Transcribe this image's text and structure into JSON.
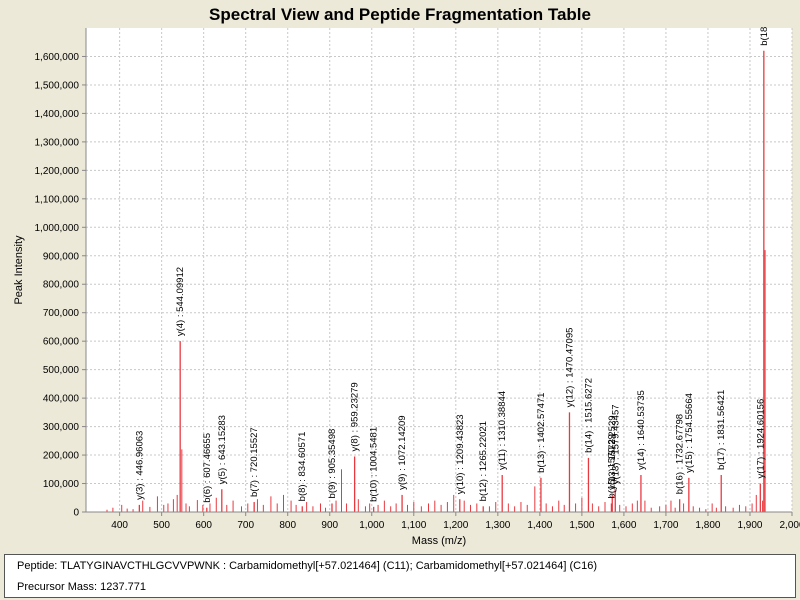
{
  "chart_data": {
    "type": "bar",
    "title": "Spectral View and Peptide Fragmentation Table",
    "xlabel": "Mass (m/z)",
    "ylabel": "Peak Intensity",
    "xlim": [
      320,
      2000
    ],
    "ylim": [
      0,
      1700000
    ],
    "x_ticks": [
      400,
      500,
      600,
      700,
      800,
      900,
      1000,
      1100,
      1200,
      1300,
      1400,
      1500,
      1600,
      1700,
      1800,
      1900,
      2000
    ],
    "x_tick_labels": [
      "400",
      "500",
      "600",
      "700",
      "800",
      "900",
      "1,000",
      "1,100",
      "1,200",
      "1,300",
      "1,400",
      "1,500",
      "1,600",
      "1,700",
      "1,800",
      "1,900",
      "2,000"
    ],
    "y_ticks": [
      0,
      100000,
      200000,
      300000,
      400000,
      500000,
      600000,
      700000,
      800000,
      900000,
      1000000,
      1100000,
      1200000,
      1300000,
      1400000,
      1500000,
      1600000
    ],
    "y_tick_labels": [
      "0",
      "100,000",
      "200,000",
      "300,000",
      "400,000",
      "500,000",
      "600,000",
      "700,000",
      "800,000",
      "900,000",
      "1,000,000",
      "1,100,000",
      "1,200,000",
      "1,300,000",
      "1,400,000",
      "1,500,000",
      "1,600,000"
    ],
    "grid": true,
    "bar_color": "#e8393f",
    "annotated_peaks": [
      {
        "label": "y(3) : 446.96063",
        "x": 446.96,
        "y": 25000
      },
      {
        "label": "y(4) : 544.09912",
        "x": 544.1,
        "y": 600000
      },
      {
        "label": "b(6) : 607.46655",
        "x": 607.47,
        "y": 15000
      },
      {
        "label": "y(5) : 643.15283",
        "x": 643.15,
        "y": 80000
      },
      {
        "label": "b(7) : 720.15527",
        "x": 720.16,
        "y": 35000
      },
      {
        "label": "b(8) : 834.60571",
        "x": 834.61,
        "y": 20000
      },
      {
        "label": "b(9) : 905.35498",
        "x": 905.35,
        "y": 30000
      },
      {
        "label": "y(8) : 959.23279",
        "x": 959.23,
        "y": 195000
      },
      {
        "label": "b(10) : 1004.5481",
        "x": 1004.55,
        "y": 18000
      },
      {
        "label": "y(9) : 1072.14209",
        "x": 1072.14,
        "y": 60000
      },
      {
        "label": "y(10) : 1209.43823",
        "x": 1209.44,
        "y": 45000
      },
      {
        "label": "b(12) : 1265.22021",
        "x": 1265.22,
        "y": 20000
      },
      {
        "label": "y(11) : 1310.38844",
        "x": 1310.39,
        "y": 130000
      },
      {
        "label": "b(13) : 1402.57471",
        "x": 1402.57,
        "y": 120000
      },
      {
        "label": "y(12) : 1470.47095",
        "x": 1470.47,
        "y": 350000
      },
      {
        "label": "b(14) : 1515.6272",
        "x": 1515.63,
        "y": 190000
      },
      {
        "label": "b(15) : 1570.29",
        "x": 1570.29,
        "y": 30000
      },
      {
        "label": "y(13) : 1572.2529",
        "x": 1572.25,
        "y": 60000
      },
      {
        "label": "y(13) : 1579.43457",
        "x": 1579.43,
        "y": 80000
      },
      {
        "label": "y(14) : 1640.53735",
        "x": 1640.54,
        "y": 130000
      },
      {
        "label": "b(16) : 1732.67798",
        "x": 1732.68,
        "y": 45000
      },
      {
        "label": "y(15) : 1754.55664",
        "x": 1754.56,
        "y": 120000
      },
      {
        "label": "b(17) : 1831.56421",
        "x": 1831.56,
        "y": 130000
      },
      {
        "label": "y(17) : 1924.60156",
        "x": 1924.6,
        "y": 100000
      },
      {
        "label": "b(18",
        "x": 1933.0,
        "y": 1620000
      }
    ],
    "other_peaks": [
      {
        "x": 370,
        "y": 8000
      },
      {
        "x": 384,
        "y": 15000
      },
      {
        "x": 405,
        "y": 25000
      },
      {
        "x": 418,
        "y": 12000
      },
      {
        "x": 432,
        "y": 10000
      },
      {
        "x": 455,
        "y": 40000
      },
      {
        "x": 472,
        "y": 18000
      },
      {
        "x": 490,
        "y": 55000
      },
      {
        "x": 505,
        "y": 25000
      },
      {
        "x": 515,
        "y": 30000
      },
      {
        "x": 528,
        "y": 45000
      },
      {
        "x": 537,
        "y": 60000
      },
      {
        "x": 548,
        "y": 220000
      },
      {
        "x": 558,
        "y": 30000
      },
      {
        "x": 566,
        "y": 20000
      },
      {
        "x": 585,
        "y": 42000
      },
      {
        "x": 598,
        "y": 25000
      },
      {
        "x": 615,
        "y": 30000
      },
      {
        "x": 630,
        "y": 50000
      },
      {
        "x": 655,
        "y": 25000
      },
      {
        "x": 670,
        "y": 40000
      },
      {
        "x": 690,
        "y": 20000
      },
      {
        "x": 705,
        "y": 30000
      },
      {
        "x": 728,
        "y": 45000
      },
      {
        "x": 742,
        "y": 25000
      },
      {
        "x": 760,
        "y": 55000
      },
      {
        "x": 775,
        "y": 30000
      },
      {
        "x": 790,
        "y": 60000
      },
      {
        "x": 808,
        "y": 40000
      },
      {
        "x": 820,
        "y": 25000
      },
      {
        "x": 845,
        "y": 35000
      },
      {
        "x": 860,
        "y": 20000
      },
      {
        "x": 878,
        "y": 30000
      },
      {
        "x": 890,
        "y": 15000
      },
      {
        "x": 915,
        "y": 40000
      },
      {
        "x": 928,
        "y": 150000
      },
      {
        "x": 940,
        "y": 30000
      },
      {
        "x": 968,
        "y": 45000
      },
      {
        "x": 985,
        "y": 20000
      },
      {
        "x": 995,
        "y": 30000
      },
      {
        "x": 1015,
        "y": 25000
      },
      {
        "x": 1030,
        "y": 40000
      },
      {
        "x": 1045,
        "y": 20000
      },
      {
        "x": 1058,
        "y": 30000
      },
      {
        "x": 1085,
        "y": 25000
      },
      {
        "x": 1100,
        "y": 35000
      },
      {
        "x": 1118,
        "y": 20000
      },
      {
        "x": 1135,
        "y": 30000
      },
      {
        "x": 1150,
        "y": 40000
      },
      {
        "x": 1165,
        "y": 25000
      },
      {
        "x": 1180,
        "y": 35000
      },
      {
        "x": 1195,
        "y": 60000
      },
      {
        "x": 1220,
        "y": 40000
      },
      {
        "x": 1235,
        "y": 25000
      },
      {
        "x": 1250,
        "y": 30000
      },
      {
        "x": 1280,
        "y": 20000
      },
      {
        "x": 1295,
        "y": 35000
      },
      {
        "x": 1325,
        "y": 30000
      },
      {
        "x": 1340,
        "y": 20000
      },
      {
        "x": 1355,
        "y": 35000
      },
      {
        "x": 1370,
        "y": 25000
      },
      {
        "x": 1388,
        "y": 90000
      },
      {
        "x": 1415,
        "y": 30000
      },
      {
        "x": 1430,
        "y": 20000
      },
      {
        "x": 1445,
        "y": 40000
      },
      {
        "x": 1458,
        "y": 25000
      },
      {
        "x": 1485,
        "y": 30000
      },
      {
        "x": 1500,
        "y": 50000
      },
      {
        "x": 1525,
        "y": 30000
      },
      {
        "x": 1540,
        "y": 20000
      },
      {
        "x": 1555,
        "y": 35000
      },
      {
        "x": 1590,
        "y": 25000
      },
      {
        "x": 1605,
        "y": 20000
      },
      {
        "x": 1620,
        "y": 30000
      },
      {
        "x": 1632,
        "y": 40000
      },
      {
        "x": 1650,
        "y": 40000
      },
      {
        "x": 1665,
        "y": 15000
      },
      {
        "x": 1685,
        "y": 20000
      },
      {
        "x": 1700,
        "y": 25000
      },
      {
        "x": 1712,
        "y": 40000
      },
      {
        "x": 1722,
        "y": 15000
      },
      {
        "x": 1742,
        "y": 30000
      },
      {
        "x": 1765,
        "y": 20000
      },
      {
        "x": 1780,
        "y": 15000
      },
      {
        "x": 1795,
        "y": 10000
      },
      {
        "x": 1810,
        "y": 30000
      },
      {
        "x": 1820,
        "y": 15000
      },
      {
        "x": 1842,
        "y": 20000
      },
      {
        "x": 1860,
        "y": 15000
      },
      {
        "x": 1875,
        "y": 25000
      },
      {
        "x": 1890,
        "y": 20000
      },
      {
        "x": 1905,
        "y": 30000
      },
      {
        "x": 1915,
        "y": 60000
      },
      {
        "x": 1930,
        "y": 40000
      },
      {
        "x": 1936,
        "y": 920000
      }
    ]
  },
  "info": {
    "peptide_line": "Peptide: TLATYGINAVCTHLGCVVPWNK : Carbamidomethyl[+57.021464] (C11); Carbamidomethyl[+57.021464] (C16)",
    "precursor_line": "Precursor Mass: 1237.771"
  }
}
